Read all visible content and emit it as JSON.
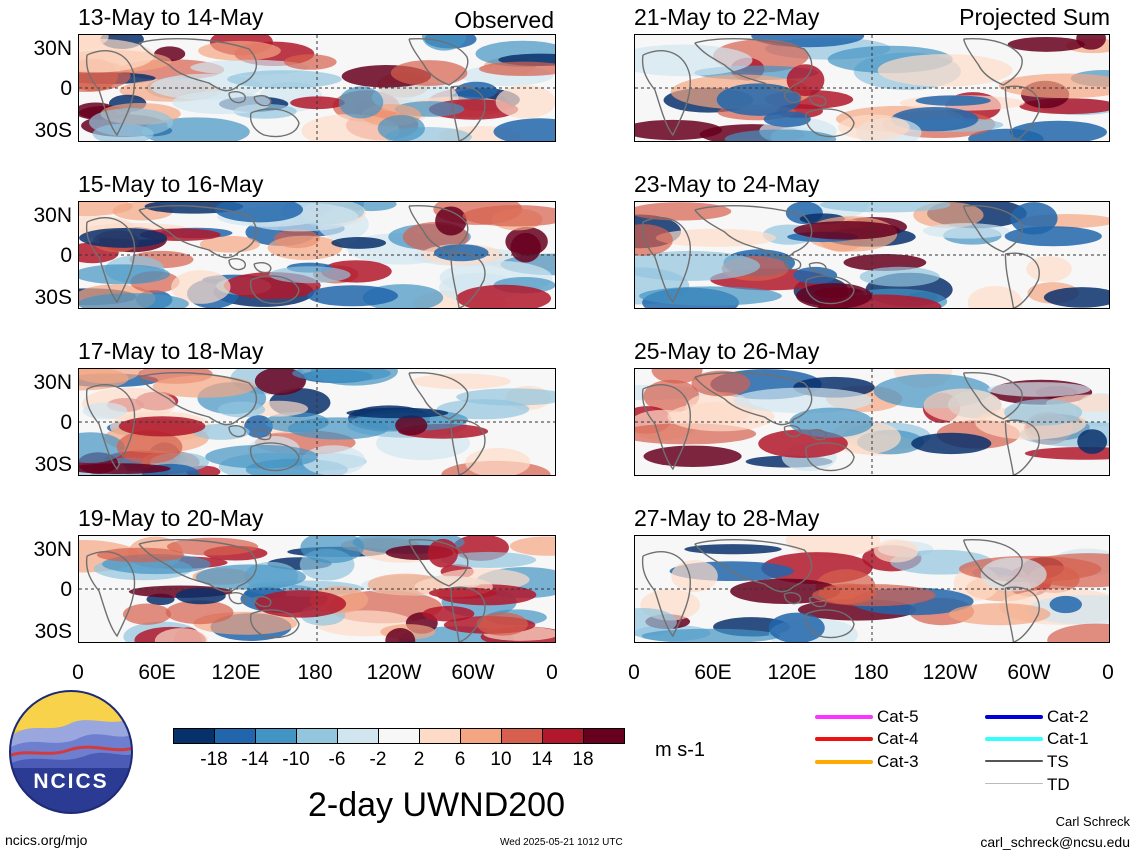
{
  "corner_labels": {
    "left": "Observed",
    "right": "Projected Sum"
  },
  "panels": {
    "left": [
      "13-May to 14-May",
      "15-May to 16-May",
      "17-May to 18-May",
      "19-May to 20-May"
    ],
    "right": [
      "21-May to 22-May",
      "23-May to 24-May",
      "25-May to 26-May",
      "27-May to 28-May"
    ]
  },
  "lat_labels": [
    "30N",
    "0",
    "30S"
  ],
  "lon_labels": [
    "0",
    "60E",
    "120E",
    "180",
    "120W",
    "60W",
    "0"
  ],
  "colorbar": {
    "ticks": [
      "-18",
      "-14",
      "-10",
      "-6",
      "-2",
      "2",
      "6",
      "10",
      "14",
      "18"
    ],
    "colors": [
      "#08306b",
      "#2166ac",
      "#4393c3",
      "#92c5de",
      "#d1e5f0",
      "#f7f7f7",
      "#fddbc7",
      "#f4a582",
      "#d6604d",
      "#b2182b",
      "#67001f"
    ],
    "units": "m s-1"
  },
  "legend": [
    {
      "label": "Cat-5",
      "color": "#ff33ff"
    },
    {
      "label": "Cat-4",
      "color": "#ee1111"
    },
    {
      "label": "Cat-3",
      "color": "#ffaa00"
    },
    {
      "label": "Cat-2",
      "color": "#0000dd"
    },
    {
      "label": "Cat-1",
      "color": "#33ffff"
    },
    {
      "label": "TS",
      "color": "#555555"
    },
    {
      "label": "TD",
      "color": "#bbbbbb"
    }
  ],
  "main_title": "2-day UWND200",
  "logo_text": "NCICS",
  "footer": {
    "left": "ncics.org/mjo",
    "center": "Wed 2025-05-21 1012 UTC",
    "author": "Carl Schreck",
    "email": "carl_schreck@ncsu.edu"
  }
}
